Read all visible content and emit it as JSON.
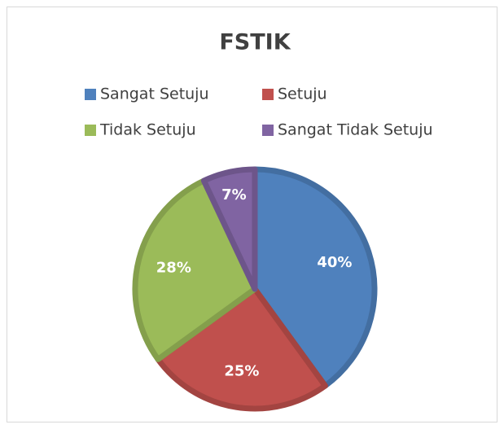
{
  "chart_data": {
    "type": "pie",
    "title": "FSTIK",
    "categories": [
      "Sangat Setuju",
      "Setuju",
      "Tidak Setuju",
      "Sangat Tidak Setuju"
    ],
    "values": [
      40,
      25,
      28,
      7
    ],
    "value_labels": [
      "40%",
      "25%",
      "28%",
      "7%"
    ],
    "colors": [
      "#4f81bd",
      "#c0504d",
      "#9bbb59",
      "#8064a2"
    ],
    "legend": "top"
  }
}
